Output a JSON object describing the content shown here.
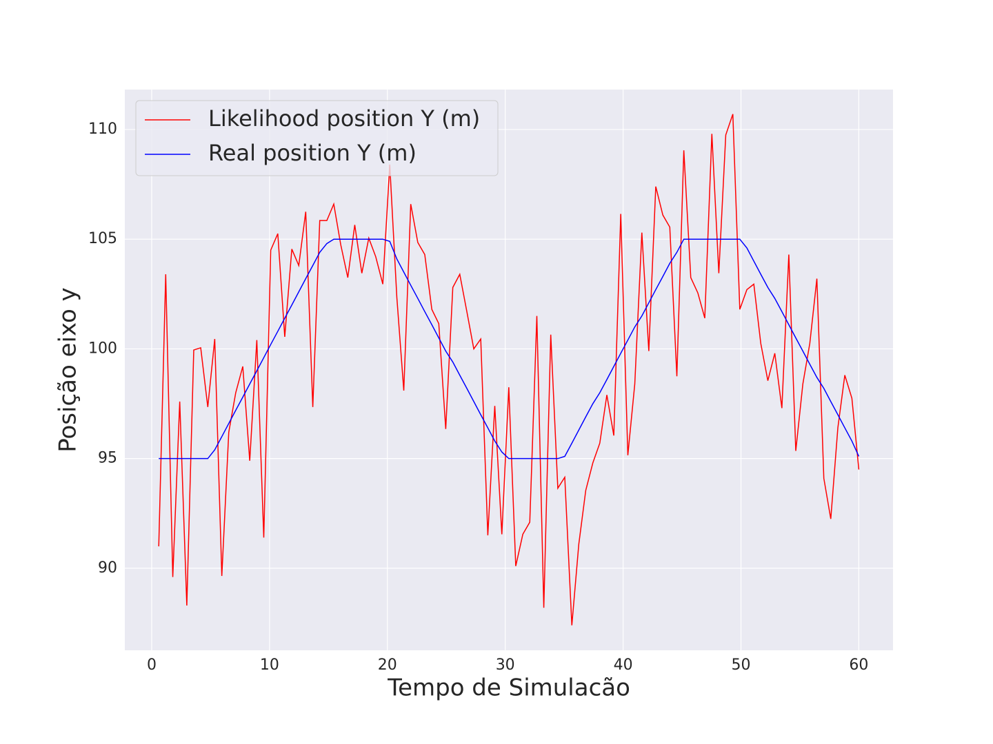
{
  "chart_data": {
    "type": "line",
    "xlabel": "Tempo de Simulacão",
    "ylabel": "Posição eixo y",
    "x": [
      0.6,
      1.19,
      1.79,
      2.38,
      2.98,
      3.57,
      4.16,
      4.76,
      5.35,
      5.95,
      6.54,
      7.13,
      7.73,
      8.32,
      8.92,
      9.51,
      10.1,
      10.7,
      11.29,
      11.89,
      12.48,
      13.07,
      13.67,
      14.26,
      14.86,
      15.45,
      16.04,
      16.64,
      17.23,
      17.83,
      18.42,
      19.01,
      19.61,
      20.2,
      20.8,
      21.39,
      21.98,
      22.58,
      23.17,
      23.77,
      24.36,
      24.95,
      25.55,
      26.14,
      26.74,
      27.33,
      27.92,
      28.52,
      29.11,
      29.71,
      30.3,
      30.89,
      31.49,
      32.08,
      32.68,
      33.27,
      33.86,
      34.46,
      35.05,
      35.65,
      36.24,
      36.83,
      37.43,
      38.02,
      38.62,
      39.21,
      39.8,
      40.4,
      40.99,
      41.59,
      42.18,
      42.77,
      43.37,
      43.96,
      44.56,
      45.15,
      45.74,
      46.34,
      46.93,
      47.53,
      48.12,
      48.71,
      49.31,
      49.9,
      50.5,
      51.09,
      51.68,
      52.28,
      52.87,
      53.47,
      54.06,
      54.65,
      55.25,
      55.84,
      56.44,
      57.03,
      57.62,
      58.22,
      58.81,
      59.41,
      60.0
    ],
    "series": [
      {
        "name": "Likelihood position Y (m)",
        "color": "#ff0000",
        "values": [
          91.0,
          103.4,
          89.6,
          97.6,
          88.3,
          99.95,
          100.05,
          97.35,
          100.45,
          89.65,
          96.2,
          98.0,
          99.2,
          94.9,
          100.4,
          91.4,
          104.5,
          105.25,
          100.55,
          104.55,
          103.8,
          106.25,
          97.35,
          105.85,
          105.85,
          106.6,
          104.75,
          103.25,
          105.65,
          103.45,
          105.05,
          104.2,
          102.95,
          108.4,
          102.35,
          98.1,
          106.6,
          104.85,
          104.3,
          101.8,
          101.15,
          96.35,
          102.8,
          103.4,
          101.7,
          100.0,
          100.45,
          91.5,
          97.4,
          91.55,
          98.25,
          90.1,
          91.55,
          92.1,
          101.5,
          88.2,
          100.65,
          93.65,
          94.15,
          87.4,
          91.1,
          93.55,
          94.8,
          95.7,
          97.9,
          96.05,
          106.15,
          95.15,
          98.4,
          105.3,
          99.9,
          107.4,
          106.1,
          105.55,
          98.75,
          109.05,
          103.25,
          102.55,
          101.4,
          109.8,
          103.45,
          109.75,
          110.7,
          101.8,
          102.7,
          102.95,
          100.25,
          98.55,
          99.8,
          97.3,
          104.3,
          95.35,
          98.4,
          100.25,
          103.2,
          94.1,
          92.25,
          96.4,
          98.8,
          97.75,
          94.5
        ]
      },
      {
        "name": "Real position Y (m)",
        "color": "#0000ff",
        "values": [
          95,
          95,
          95,
          95,
          95,
          95,
          95,
          95,
          95.4,
          96.0,
          96.6,
          97.2,
          97.8,
          98.4,
          99.0,
          99.6,
          100.2,
          100.8,
          101.4,
          102.0,
          102.6,
          103.2,
          103.8,
          104.4,
          104.8,
          105,
          105,
          105,
          105,
          105,
          105,
          105,
          105,
          104.9,
          104.1,
          103.5,
          102.9,
          102.3,
          101.7,
          101.1,
          100.5,
          99.9,
          99.4,
          98.8,
          98.2,
          97.6,
          97.0,
          96.4,
          95.8,
          95.3,
          95,
          95,
          95,
          95,
          95,
          95,
          95,
          95,
          95.1,
          95.7,
          96.3,
          96.9,
          97.5,
          98.0,
          98.6,
          99.2,
          99.8,
          100.4,
          101.0,
          101.5,
          102.1,
          102.7,
          103.3,
          103.9,
          104.4,
          105.0,
          105,
          105,
          105,
          105,
          105,
          105,
          105,
          105,
          104.6,
          104.0,
          103.4,
          102.8,
          102.3,
          101.7,
          101.1,
          100.5,
          99.9,
          99.3,
          98.7,
          98.2,
          97.6,
          97.0,
          96.4,
          95.8,
          95.1
        ]
      }
    ],
    "xlim": [
      -2.28,
      62.9
    ],
    "xticks": [
      0,
      10,
      20,
      30,
      40,
      50,
      60
    ],
    "ylim": [
      86.26,
      111.82
    ],
    "yticks": [
      90,
      95,
      100,
      105,
      110
    ],
    "grid": true,
    "legend": "upper left"
  }
}
